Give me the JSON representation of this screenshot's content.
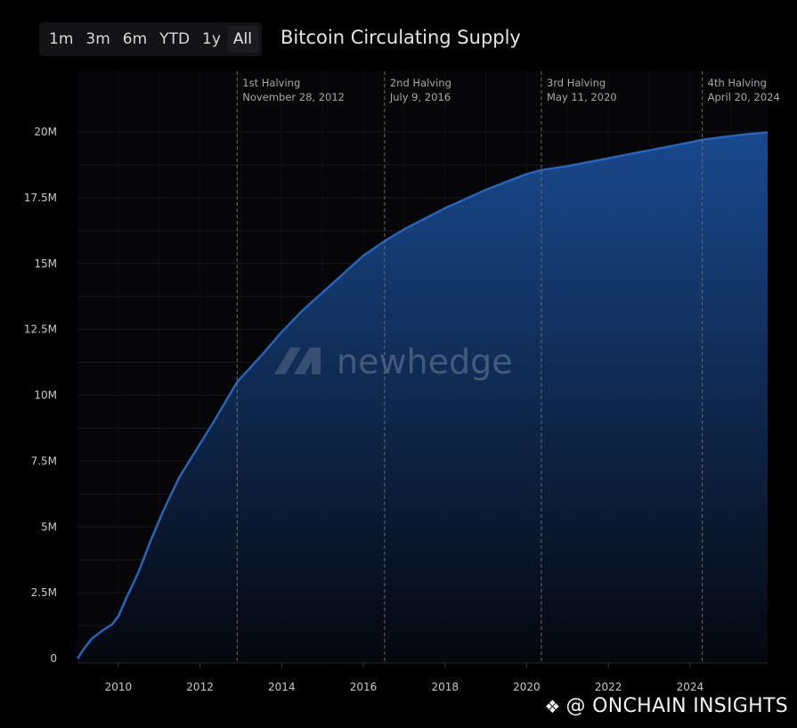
{
  "toolbar": {
    "ranges": [
      "1m",
      "3m",
      "6m",
      "YTD",
      "1y",
      "All"
    ],
    "active": "All"
  },
  "title": "Bitcoin Circulating Supply",
  "brand_watermark": "newhedge",
  "source_watermark": "@ ONCHAIN INSIGHTS",
  "colors": {
    "background": "#000000",
    "line": "#2a64b6",
    "fill_top": "#1a4c94",
    "fill_bottom": "#05070d",
    "gridline": "#1b1b1f",
    "halving_line": "#6a6a70",
    "axis_text": "#c8c8c8",
    "annotation_text": "#a8a8a8"
  },
  "chart_data": {
    "type": "area",
    "title": "Bitcoin Circulating Supply",
    "xlabel": "",
    "ylabel": "",
    "x_ticks": [
      "2010",
      "2012",
      "2014",
      "2016",
      "2018",
      "2020",
      "2022",
      "2024"
    ],
    "y_ticks": [
      "0",
      "2.5M",
      "5M",
      "7.5M",
      "10M",
      "12.5M",
      "15M",
      "17.5M",
      "20M"
    ],
    "xlim": [
      2009.0,
      2025.9
    ],
    "ylim": [
      0,
      20.5
    ],
    "y_unit": "millions BTC",
    "grid": true,
    "series": [
      {
        "x": [
          2009.0,
          2009.15,
          2009.35,
          2009.6,
          2009.85,
          2010.0,
          2010.2,
          2010.5,
          2010.8,
          2011.1,
          2011.5,
          2011.9,
          2012.3,
          2012.91,
          2013.5,
          2014.0,
          2014.5,
          2015.0,
          2015.5,
          2016.0,
          2016.52,
          2017.0,
          2017.5,
          2018.0,
          2018.5,
          2019.0,
          2019.5,
          2020.0,
          2020.36,
          2021.0,
          2021.5,
          2022.0,
          2022.5,
          2023.0,
          2023.5,
          2024.0,
          2024.3,
          2024.8,
          2025.3,
          2025.9
        ],
        "y": [
          0.0,
          0.35,
          0.75,
          1.05,
          1.3,
          1.6,
          2.3,
          3.3,
          4.5,
          5.6,
          6.9,
          7.9,
          8.9,
          10.5,
          11.5,
          12.4,
          13.2,
          13.9,
          14.6,
          15.3,
          15.85,
          16.3,
          16.7,
          17.1,
          17.45,
          17.8,
          18.1,
          18.4,
          18.55,
          18.7,
          18.85,
          19.0,
          19.15,
          19.3,
          19.45,
          19.6,
          19.7,
          19.8,
          19.9,
          19.98
        ]
      }
    ],
    "annotations": [
      {
        "x": 2012.91,
        "line1": "1st Halving",
        "line2": "November 28, 2012"
      },
      {
        "x": 2016.52,
        "line1": "2nd Halving",
        "line2": "July 9, 2016"
      },
      {
        "x": 2020.36,
        "line1": "3rd Halving",
        "line2": "May 11, 2020"
      },
      {
        "x": 2024.3,
        "line1": "4th Halving",
        "line2": "April 20, 2024"
      }
    ]
  }
}
